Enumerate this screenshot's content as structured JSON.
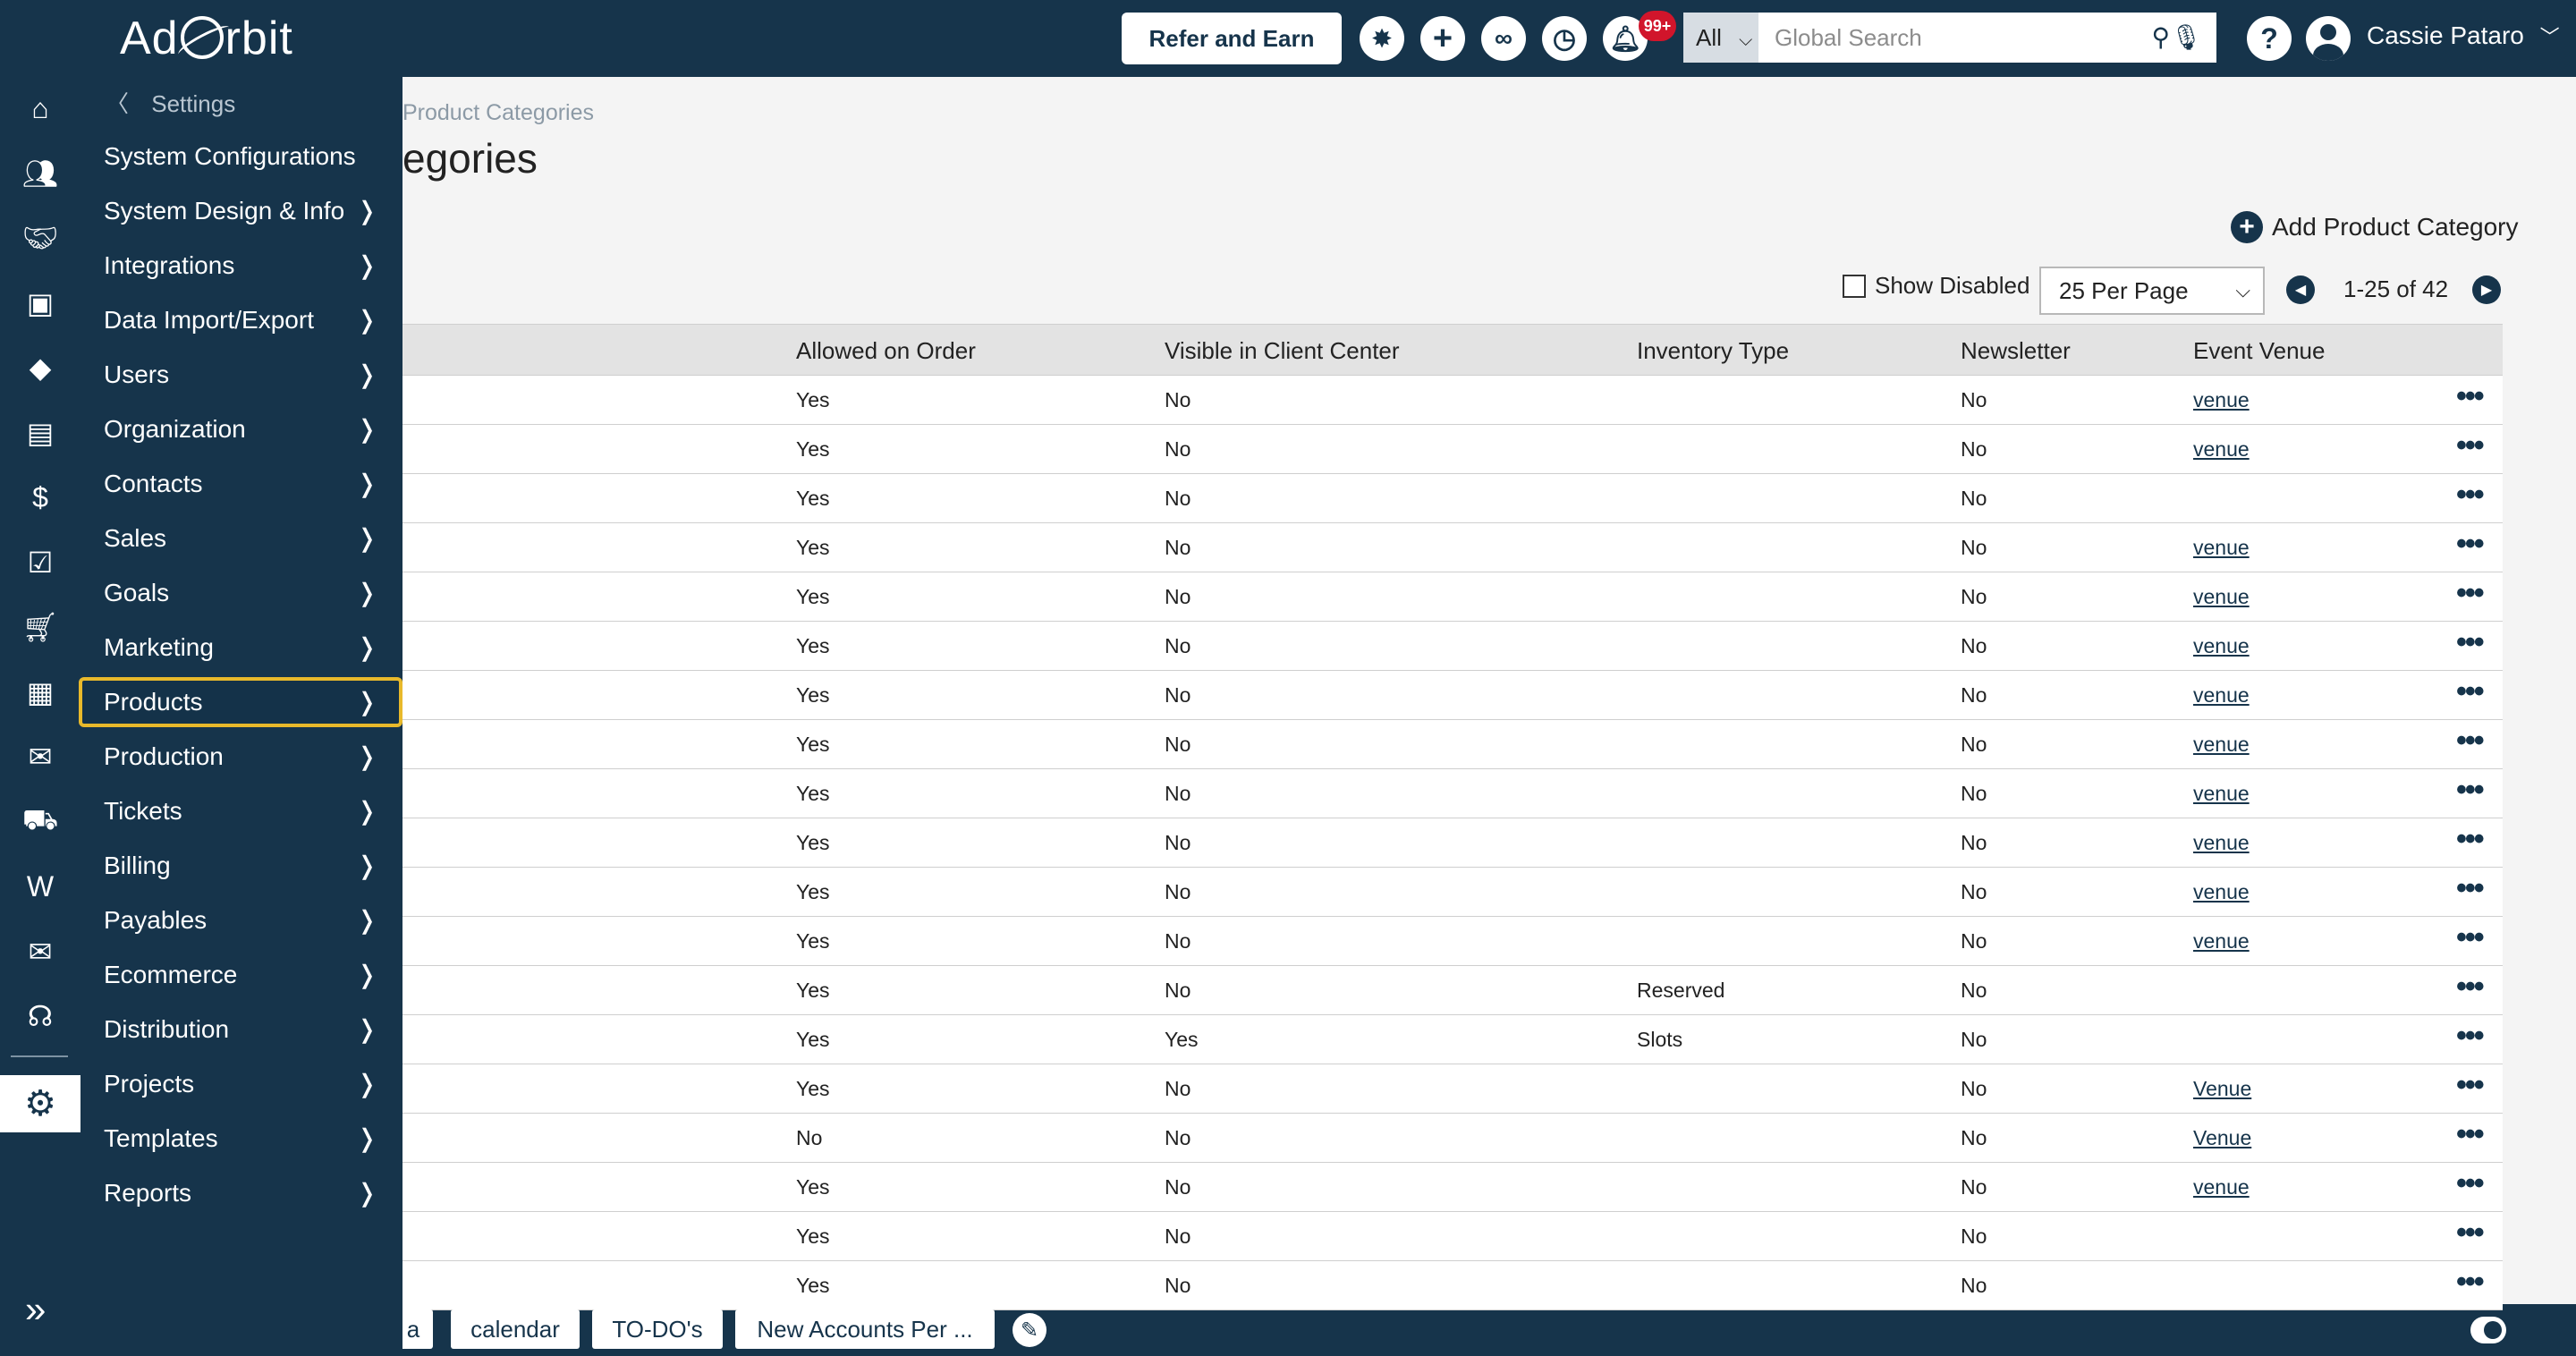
{
  "app": {
    "logo_text_a": "Ad",
    "logo_text_b": "rbit"
  },
  "topbar": {
    "refer_label": "Refer and Earn",
    "notification_badge": "99+",
    "search_scope": "All",
    "search_placeholder": "Global Search",
    "help_label": "?",
    "user_name": "Cassie Pataro",
    "user_chevron": "﹀"
  },
  "menu": {
    "back_label": "Settings",
    "items": [
      {
        "label": "System Configurations",
        "arrow": ""
      },
      {
        "label": "System Design & Info",
        "arrow": "❭"
      },
      {
        "label": "Integrations",
        "arrow": "❭"
      },
      {
        "label": "Data Import/Export",
        "arrow": "❭"
      },
      {
        "label": "Users",
        "arrow": "❭"
      },
      {
        "label": "Organization",
        "arrow": "❭"
      },
      {
        "label": "Contacts",
        "arrow": "❭"
      },
      {
        "label": "Sales",
        "arrow": "❭"
      },
      {
        "label": "Goals",
        "arrow": "❭"
      },
      {
        "label": "Marketing",
        "arrow": "❭"
      },
      {
        "label": "Products",
        "arrow": "❭"
      },
      {
        "label": "Production",
        "arrow": "❭"
      },
      {
        "label": "Tickets",
        "arrow": "❭"
      },
      {
        "label": "Billing",
        "arrow": "❭"
      },
      {
        "label": "Payables",
        "arrow": "❭"
      },
      {
        "label": "Ecommerce",
        "arrow": "❭"
      },
      {
        "label": "Distribution",
        "arrow": "❭"
      },
      {
        "label": "Projects",
        "arrow": "❭"
      },
      {
        "label": "Templates",
        "arrow": "❭"
      },
      {
        "label": "Reports",
        "arrow": "❭"
      }
    ],
    "active_item": "Products"
  },
  "rail": {
    "icons": [
      "home-icon",
      "contacts-icon",
      "handshake-icon",
      "gallery-icon",
      "tag-icon",
      "invoice-icon",
      "billing-icon",
      "checklist-icon",
      "cart-icon",
      "event-calendar-icon",
      "mailbox-icon",
      "delivery-truck-icon",
      "w2-form-icon",
      "email-icon",
      "support-icon",
      "settings-icon"
    ],
    "expand_glyph": "»"
  },
  "page": {
    "breadcrumb": "Product Categories",
    "title": "egories",
    "add_label": "Add Product Category",
    "show_disabled_label": "Show Disabled",
    "per_page": "25 Per Page",
    "pagination": "1-25 of 42"
  },
  "table": {
    "columns": [
      "Allowed on Order",
      "Visible in Client Center",
      "Inventory Type",
      "Newsletter",
      "Event Venue"
    ],
    "rows": [
      [
        "Yes",
        "No",
        "",
        "No",
        "venue"
      ],
      [
        "Yes",
        "No",
        "",
        "No",
        "venue"
      ],
      [
        "Yes",
        "No",
        "",
        "No",
        ""
      ],
      [
        "Yes",
        "No",
        "",
        "No",
        "venue"
      ],
      [
        "Yes",
        "No",
        "",
        "No",
        "venue"
      ],
      [
        "Yes",
        "No",
        "",
        "No",
        "venue"
      ],
      [
        "Yes",
        "No",
        "",
        "No",
        "venue"
      ],
      [
        "Yes",
        "No",
        "",
        "No",
        "venue"
      ],
      [
        "Yes",
        "No",
        "",
        "No",
        "venue"
      ],
      [
        "Yes",
        "No",
        "",
        "No",
        "venue"
      ],
      [
        "Yes",
        "No",
        "",
        "No",
        "venue"
      ],
      [
        "Yes",
        "No",
        "",
        "No",
        "venue"
      ],
      [
        "Yes",
        "No",
        "Reserved",
        "No",
        ""
      ],
      [
        "Yes",
        "Yes",
        "Slots",
        "No",
        ""
      ],
      [
        "Yes",
        "No",
        "",
        "No",
        "Venue"
      ],
      [
        "No",
        "No",
        "",
        "No",
        "Venue"
      ],
      [
        "Yes",
        "No",
        "",
        "No",
        "venue"
      ],
      [
        "Yes",
        "No",
        "",
        "No",
        ""
      ],
      [
        "Yes",
        "No",
        "",
        "No",
        ""
      ]
    ],
    "row_action_glyph": "•••"
  },
  "bottom_tabs": [
    "a",
    "calendar",
    "TO-DO's",
    "New Accounts Per ..."
  ],
  "colors": {
    "navy": "#16344b",
    "highlight": "#e8b92b",
    "badge": "#d1152b"
  }
}
